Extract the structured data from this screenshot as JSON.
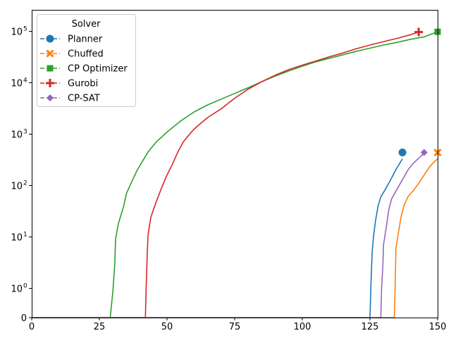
{
  "chart_data": {
    "type": "line",
    "xlim": [
      0,
      150
    ],
    "x_ticks": [
      0,
      25,
      50,
      75,
      100,
      125,
      150
    ],
    "y_scale": "symlog",
    "y_ticks": [
      {
        "value": 0,
        "label": "0"
      },
      {
        "value": 1,
        "label": "10",
        "exp": "0"
      },
      {
        "value": 10,
        "label": "10",
        "exp": "1"
      },
      {
        "value": 100,
        "label": "10",
        "exp": "2"
      },
      {
        "value": 1000,
        "label": "10",
        "exp": "3"
      },
      {
        "value": 10000,
        "label": "10",
        "exp": "4"
      },
      {
        "value": 100000,
        "label": "10",
        "exp": "5"
      }
    ],
    "grid": false,
    "legend": {
      "title": "Solver",
      "placement": "top-left"
    },
    "series": [
      {
        "name": "Planner",
        "color": "#1f77b4",
        "marker": "circle",
        "points": [
          [
            0,
            0
          ],
          [
            125,
            0
          ],
          [
            125.3,
            1
          ],
          [
            125.8,
            5
          ],
          [
            126.3,
            10
          ],
          [
            127,
            20
          ],
          [
            128,
            40
          ],
          [
            129,
            60
          ],
          [
            131,
            90
          ],
          [
            133,
            140
          ],
          [
            134.5,
            200
          ],
          [
            136.5,
            300
          ],
          [
            137,
            330
          ]
        ],
        "end_marker": [
          137,
          440
        ]
      },
      {
        "name": "Chuffed",
        "color": "#ff7f0e",
        "marker": "x",
        "points": [
          [
            0,
            0
          ],
          [
            134,
            0
          ],
          [
            134.3,
            1
          ],
          [
            134.6,
            6
          ],
          [
            135.5,
            12
          ],
          [
            136.5,
            25
          ],
          [
            137.5,
            40
          ],
          [
            139,
            60
          ],
          [
            141,
            80
          ],
          [
            143,
            110
          ],
          [
            145,
            160
          ],
          [
            147,
            230
          ],
          [
            149,
            300
          ],
          [
            150,
            330
          ]
        ],
        "end_marker": [
          150,
          440
        ]
      },
      {
        "name": "CP Optimizer",
        "color": "#2ca02c",
        "marker": "square",
        "points": [
          [
            0,
            0
          ],
          [
            29,
            0
          ],
          [
            30,
            0.9
          ],
          [
            30.7,
            3
          ],
          [
            31,
            9
          ],
          [
            32,
            18
          ],
          [
            34,
            40
          ],
          [
            35,
            70
          ],
          [
            37,
            120
          ],
          [
            39,
            200
          ],
          [
            41,
            300
          ],
          [
            43,
            450
          ],
          [
            46,
            700
          ],
          [
            50,
            1100
          ],
          [
            55,
            1800
          ],
          [
            60,
            2700
          ],
          [
            65,
            3700
          ],
          [
            70,
            4800
          ],
          [
            75,
            6200
          ],
          [
            80,
            8000
          ],
          [
            85,
            10500
          ],
          [
            90,
            13500
          ],
          [
            95,
            17000
          ],
          [
            100,
            21000
          ],
          [
            105,
            25500
          ],
          [
            110,
            30000
          ],
          [
            115,
            35000
          ],
          [
            120,
            41000
          ],
          [
            125,
            47000
          ],
          [
            130,
            54000
          ],
          [
            135,
            61000
          ],
          [
            140,
            70000
          ],
          [
            145,
            78000
          ],
          [
            150,
            98000
          ]
        ],
        "end_marker": [
          150,
          98000
        ]
      },
      {
        "name": "Gurobi",
        "color": "#d62728",
        "marker": "plus",
        "points": [
          [
            0,
            0
          ],
          [
            42,
            0
          ],
          [
            42.3,
            1
          ],
          [
            42.7,
            5
          ],
          [
            43,
            11
          ],
          [
            44,
            24
          ],
          [
            46,
            48
          ],
          [
            48,
            90
          ],
          [
            50,
            160
          ],
          [
            52,
            260
          ],
          [
            54,
            450
          ],
          [
            56,
            700
          ],
          [
            58,
            950
          ],
          [
            60,
            1250
          ],
          [
            62,
            1550
          ],
          [
            65,
            2100
          ],
          [
            70,
            3100
          ],
          [
            75,
            5000
          ],
          [
            80,
            7500
          ],
          [
            85,
            10500
          ],
          [
            90,
            14000
          ],
          [
            95,
            18000
          ],
          [
            100,
            22000
          ],
          [
            105,
            26500
          ],
          [
            110,
            32000
          ],
          [
            115,
            38000
          ],
          [
            120,
            46000
          ],
          [
            125,
            54000
          ],
          [
            130,
            63000
          ],
          [
            135,
            73000
          ],
          [
            140,
            86000
          ],
          [
            143,
            97000
          ]
        ],
        "end_marker": [
          143,
          97000
        ]
      },
      {
        "name": "CP-SAT",
        "color": "#9467bd",
        "marker": "diamond",
        "points": [
          [
            0,
            0
          ],
          [
            129,
            0
          ],
          [
            129.3,
            1
          ],
          [
            129.8,
            3
          ],
          [
            130,
            7
          ],
          [
            131,
            15
          ],
          [
            132,
            35
          ],
          [
            133,
            55
          ],
          [
            135,
            85
          ],
          [
            137,
            130
          ],
          [
            139,
            200
          ],
          [
            141,
            270
          ],
          [
            143,
            340
          ],
          [
            145,
            420
          ]
        ],
        "end_marker": [
          145,
          440
        ]
      }
    ]
  }
}
